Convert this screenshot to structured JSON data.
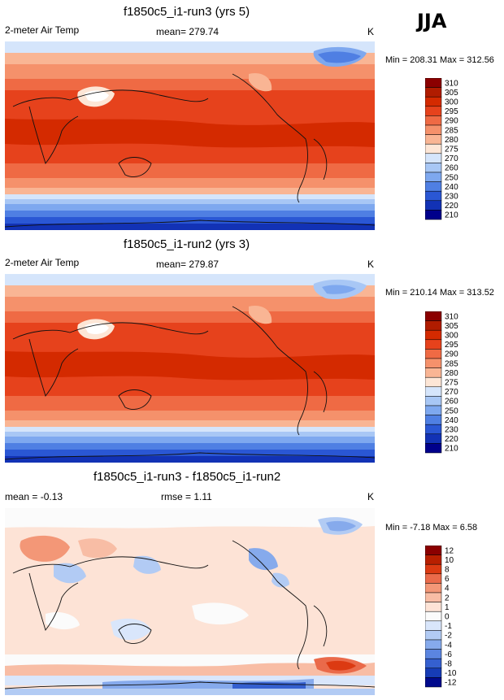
{
  "season": "JJA",
  "chart_data": [
    {
      "type": "heatmap",
      "title": "f1850c5_i1-run3 (yrs 5)",
      "variable": "2-meter Air Temp",
      "mean_label": "mean= 279.74",
      "units": "K",
      "minmax": "Min = 208.31 Max = 312.56",
      "min": 208.31,
      "max": 312.56,
      "mean": 279.74,
      "colorbar_levels": [
        "310",
        "305",
        "300",
        "295",
        "290",
        "285",
        "280",
        "275",
        "270",
        "260",
        "250",
        "240",
        "230",
        "220",
        "210"
      ]
    },
    {
      "type": "heatmap",
      "title": "f1850c5_i1-run2 (yrs 3)",
      "variable": "2-meter Air Temp",
      "mean_label": "mean= 279.87",
      "units": "K",
      "minmax": "Min = 210.14 Max = 313.52",
      "min": 210.14,
      "max": 313.52,
      "mean": 279.87,
      "colorbar_levels": [
        "310",
        "305",
        "300",
        "295",
        "290",
        "285",
        "280",
        "275",
        "270",
        "260",
        "250",
        "240",
        "230",
        "220",
        "210"
      ]
    },
    {
      "type": "heatmap",
      "title": "f1850c5_i1-run3 - f1850c5_i1-run2",
      "mean_label": "mean = -0.13",
      "rmse_label": "rmse = 1.11",
      "units": "K",
      "minmax": "Min = -7.18 Max = 6.58",
      "min": -7.18,
      "max": 6.58,
      "mean": -0.13,
      "rmse": 1.11,
      "colorbar_levels": [
        "12",
        "10",
        "8",
        "6",
        "4",
        "2",
        "1",
        "0",
        "-1",
        "-2",
        "-4",
        "-6",
        "-8",
        "-10",
        "-12"
      ]
    }
  ],
  "colors": {
    "temp_scale": [
      "#8b0000",
      "#b01c00",
      "#d42a00",
      "#e6421c",
      "#ef6a44",
      "#f5916b",
      "#f9b594",
      "#fde6d6",
      "#d5e5fb",
      "#a8c7f5",
      "#7ea8ef",
      "#4f7fe3",
      "#2a57d4",
      "#1232b5",
      "#00008b"
    ],
    "diff_scale": [
      "#8b0000",
      "#b81f00",
      "#dc3a12",
      "#ea6a4a",
      "#f39777",
      "#f8bda5",
      "#fde3d6",
      "#fbfbfb",
      "#d9e6fb",
      "#b2cbf4",
      "#86aaec",
      "#5b85e0",
      "#3560d0",
      "#163cb6",
      "#000a8c"
    ]
  }
}
